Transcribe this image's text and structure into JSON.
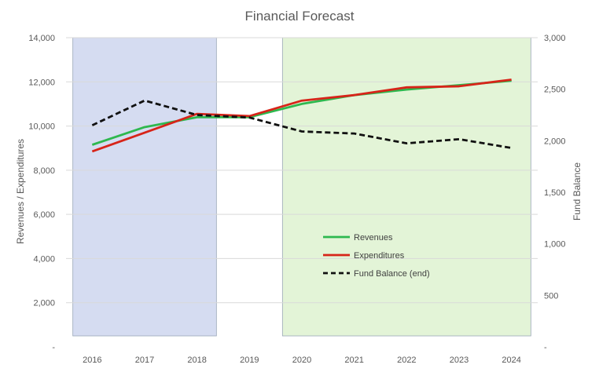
{
  "chart_data": {
    "type": "line",
    "title": "Financial Forecast",
    "ylabel": "Revenues / Expenditures",
    "y2label": "Fund Balance",
    "categories": [
      "2016",
      "2017",
      "2018",
      "2019",
      "2020",
      "2021",
      "2022",
      "2023",
      "2024"
    ],
    "ylim": [
      0,
      14000
    ],
    "y2lim": [
      0,
      3000
    ],
    "yticks": [
      "-",
      "2,000",
      "4,000",
      "6,000",
      "8,000",
      "10,000",
      "12,000",
      "14,000"
    ],
    "y2ticks": [
      "-",
      "500",
      "1,000",
      "1,500",
      "2,000",
      "2,500",
      "3,000"
    ],
    "grid": true,
    "legend_position": "center-right",
    "shaded_regions": [
      {
        "from": "2016",
        "to": "2018",
        "color": "#d5dcf1"
      },
      {
        "from": "2020",
        "to": "2024",
        "color": "#e3f4d7"
      }
    ],
    "series": [
      {
        "name": "Revenues",
        "axis": "left",
        "color": "#2eb84f",
        "style": "solid",
        "values": [
          9150,
          9950,
          10400,
          10400,
          11000,
          11400,
          11650,
          11850,
          12050
        ]
      },
      {
        "name": "Expenditures",
        "axis": "left",
        "color": "#d72419",
        "style": "solid",
        "values": [
          8850,
          9700,
          10550,
          10450,
          11150,
          11400,
          11750,
          11800,
          12100
        ]
      },
      {
        "name": "Fund Balance (end)",
        "axis": "right",
        "color": "#111111",
        "style": "dashed",
        "values": [
          2150,
          2390,
          2250,
          2225,
          2090,
          2070,
          1975,
          2015,
          1930
        ]
      }
    ]
  }
}
